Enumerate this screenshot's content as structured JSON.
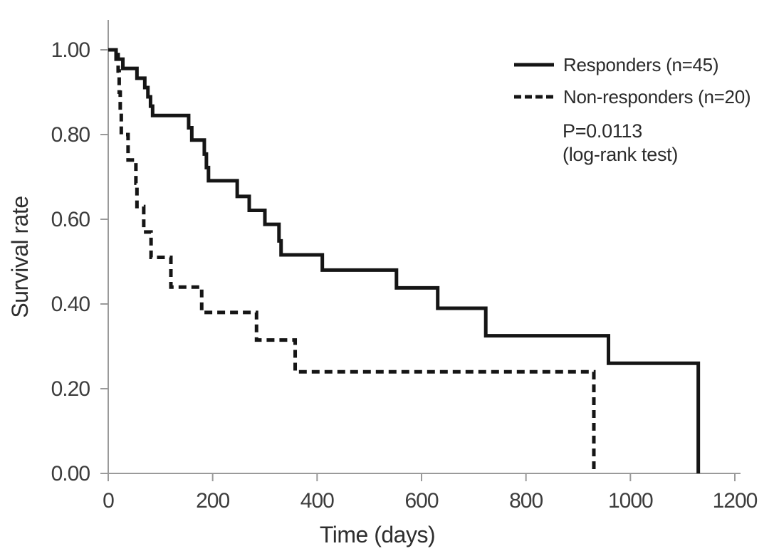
{
  "colors": {
    "background": "#ffffff",
    "curve": "#151515",
    "axis": "#9a9a9a",
    "tick_label": "#3d3d3d",
    "text": "#2b2b2b"
  },
  "chart_data": {
    "type": "line",
    "variant": "kaplan_meier_step",
    "title": "",
    "xlabel": "Time (days)",
    "ylabel": "Survival rate",
    "xlim": [
      0,
      1200
    ],
    "ylim": [
      0,
      1
    ],
    "grid": false,
    "x_tick_values": [
      0,
      200,
      400,
      600,
      800,
      1000,
      1200
    ],
    "x_tick_labels": [
      "0",
      "200",
      "400",
      "600",
      "800",
      "1000",
      "1200"
    ],
    "y_tick_values": [
      0.0,
      0.2,
      0.4,
      0.6,
      0.8,
      1.0
    ],
    "y_tick_labels": [
      "0.00",
      "0.20",
      "0.40",
      "0.60",
      "0.80",
      "1.00"
    ],
    "legend": {
      "position": "top-right",
      "entries": [
        {
          "label": "Responders (n=45)",
          "line_style": "solid"
        },
        {
          "label": "Non-responders (n=20)",
          "line_style": "dashed"
        }
      ]
    },
    "annotations": [
      {
        "text": "P=0.0113"
      },
      {
        "text": "(log-rank test)"
      }
    ],
    "series": [
      {
        "name": "Responders (n=45)",
        "line_style": "solid",
        "step_points": [
          [
            0,
            1.0
          ],
          [
            15,
            0.978
          ],
          [
            28,
            0.956
          ],
          [
            55,
            0.933
          ],
          [
            70,
            0.911
          ],
          [
            76,
            0.889
          ],
          [
            81,
            0.867
          ],
          [
            85,
            0.845
          ],
          [
            154,
            0.816
          ],
          [
            160,
            0.787
          ],
          [
            184,
            0.754
          ],
          [
            188,
            0.722
          ],
          [
            192,
            0.691
          ],
          [
            247,
            0.654
          ],
          [
            270,
            0.621
          ],
          [
            300,
            0.588
          ],
          [
            327,
            0.549
          ],
          [
            331,
            0.516
          ],
          [
            410,
            0.48
          ],
          [
            552,
            0.438
          ],
          [
            631,
            0.39
          ],
          [
            723,
            0.325
          ],
          [
            958,
            0.26
          ],
          [
            1130,
            0.0
          ]
        ]
      },
      {
        "name": "Non-responders (n=20)",
        "line_style": "dashed",
        "step_points": [
          [
            0,
            1.0
          ],
          [
            19,
            0.95
          ],
          [
            21,
            0.9
          ],
          [
            23,
            0.85
          ],
          [
            25,
            0.8
          ],
          [
            38,
            0.74
          ],
          [
            53,
            0.685
          ],
          [
            55,
            0.63
          ],
          [
            68,
            0.57
          ],
          [
            82,
            0.51
          ],
          [
            120,
            0.44
          ],
          [
            179,
            0.38
          ],
          [
            284,
            0.315
          ],
          [
            358,
            0.24
          ],
          [
            930,
            0.0
          ]
        ]
      }
    ]
  }
}
